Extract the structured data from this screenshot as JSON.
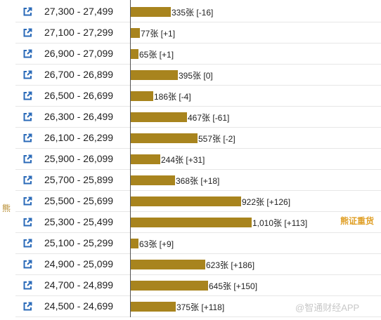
{
  "side_label": "熊",
  "annotation": "熊证重货",
  "watermark": "@智通财经APP",
  "colors": {
    "bar": "#a8841e",
    "icon": "#2a6ab8",
    "annotation": "#e0a028"
  },
  "chart_data": {
    "type": "bar",
    "orientation": "horizontal",
    "categories": [
      "27,300 - 27,499",
      "27,100 - 27,299",
      "26,900 - 27,099",
      "26,700 - 26,899",
      "26,500 - 26,699",
      "26,300 - 26,499",
      "26,100 - 26,299",
      "25,900 - 26,099",
      "25,700 - 25,899",
      "25,500 - 25,699",
      "25,300 - 25,499",
      "25,100 - 25,299",
      "24,900 - 25,099",
      "24,700 - 24,899",
      "24,500 - 24,699"
    ],
    "values": [
      335,
      77,
      65,
      395,
      186,
      467,
      557,
      244,
      368,
      922,
      1010,
      63,
      623,
      645,
      375
    ],
    "labels": [
      "335张 [-16]",
      "77张 [+1]",
      "65张 [+1]",
      "395张 [0]",
      "186张 [-4]",
      "467张 [-61]",
      "557张 [-2]",
      "244张 [+31]",
      "368张 [+18]",
      "922张 [+126]",
      "1,010张 [+113]",
      "63张 [+9]",
      "623张 [+186]",
      "645张 [+150]",
      "375张 [+118]"
    ],
    "xlim": [
      0,
      1010
    ],
    "row_icon": "external-link-icon"
  }
}
